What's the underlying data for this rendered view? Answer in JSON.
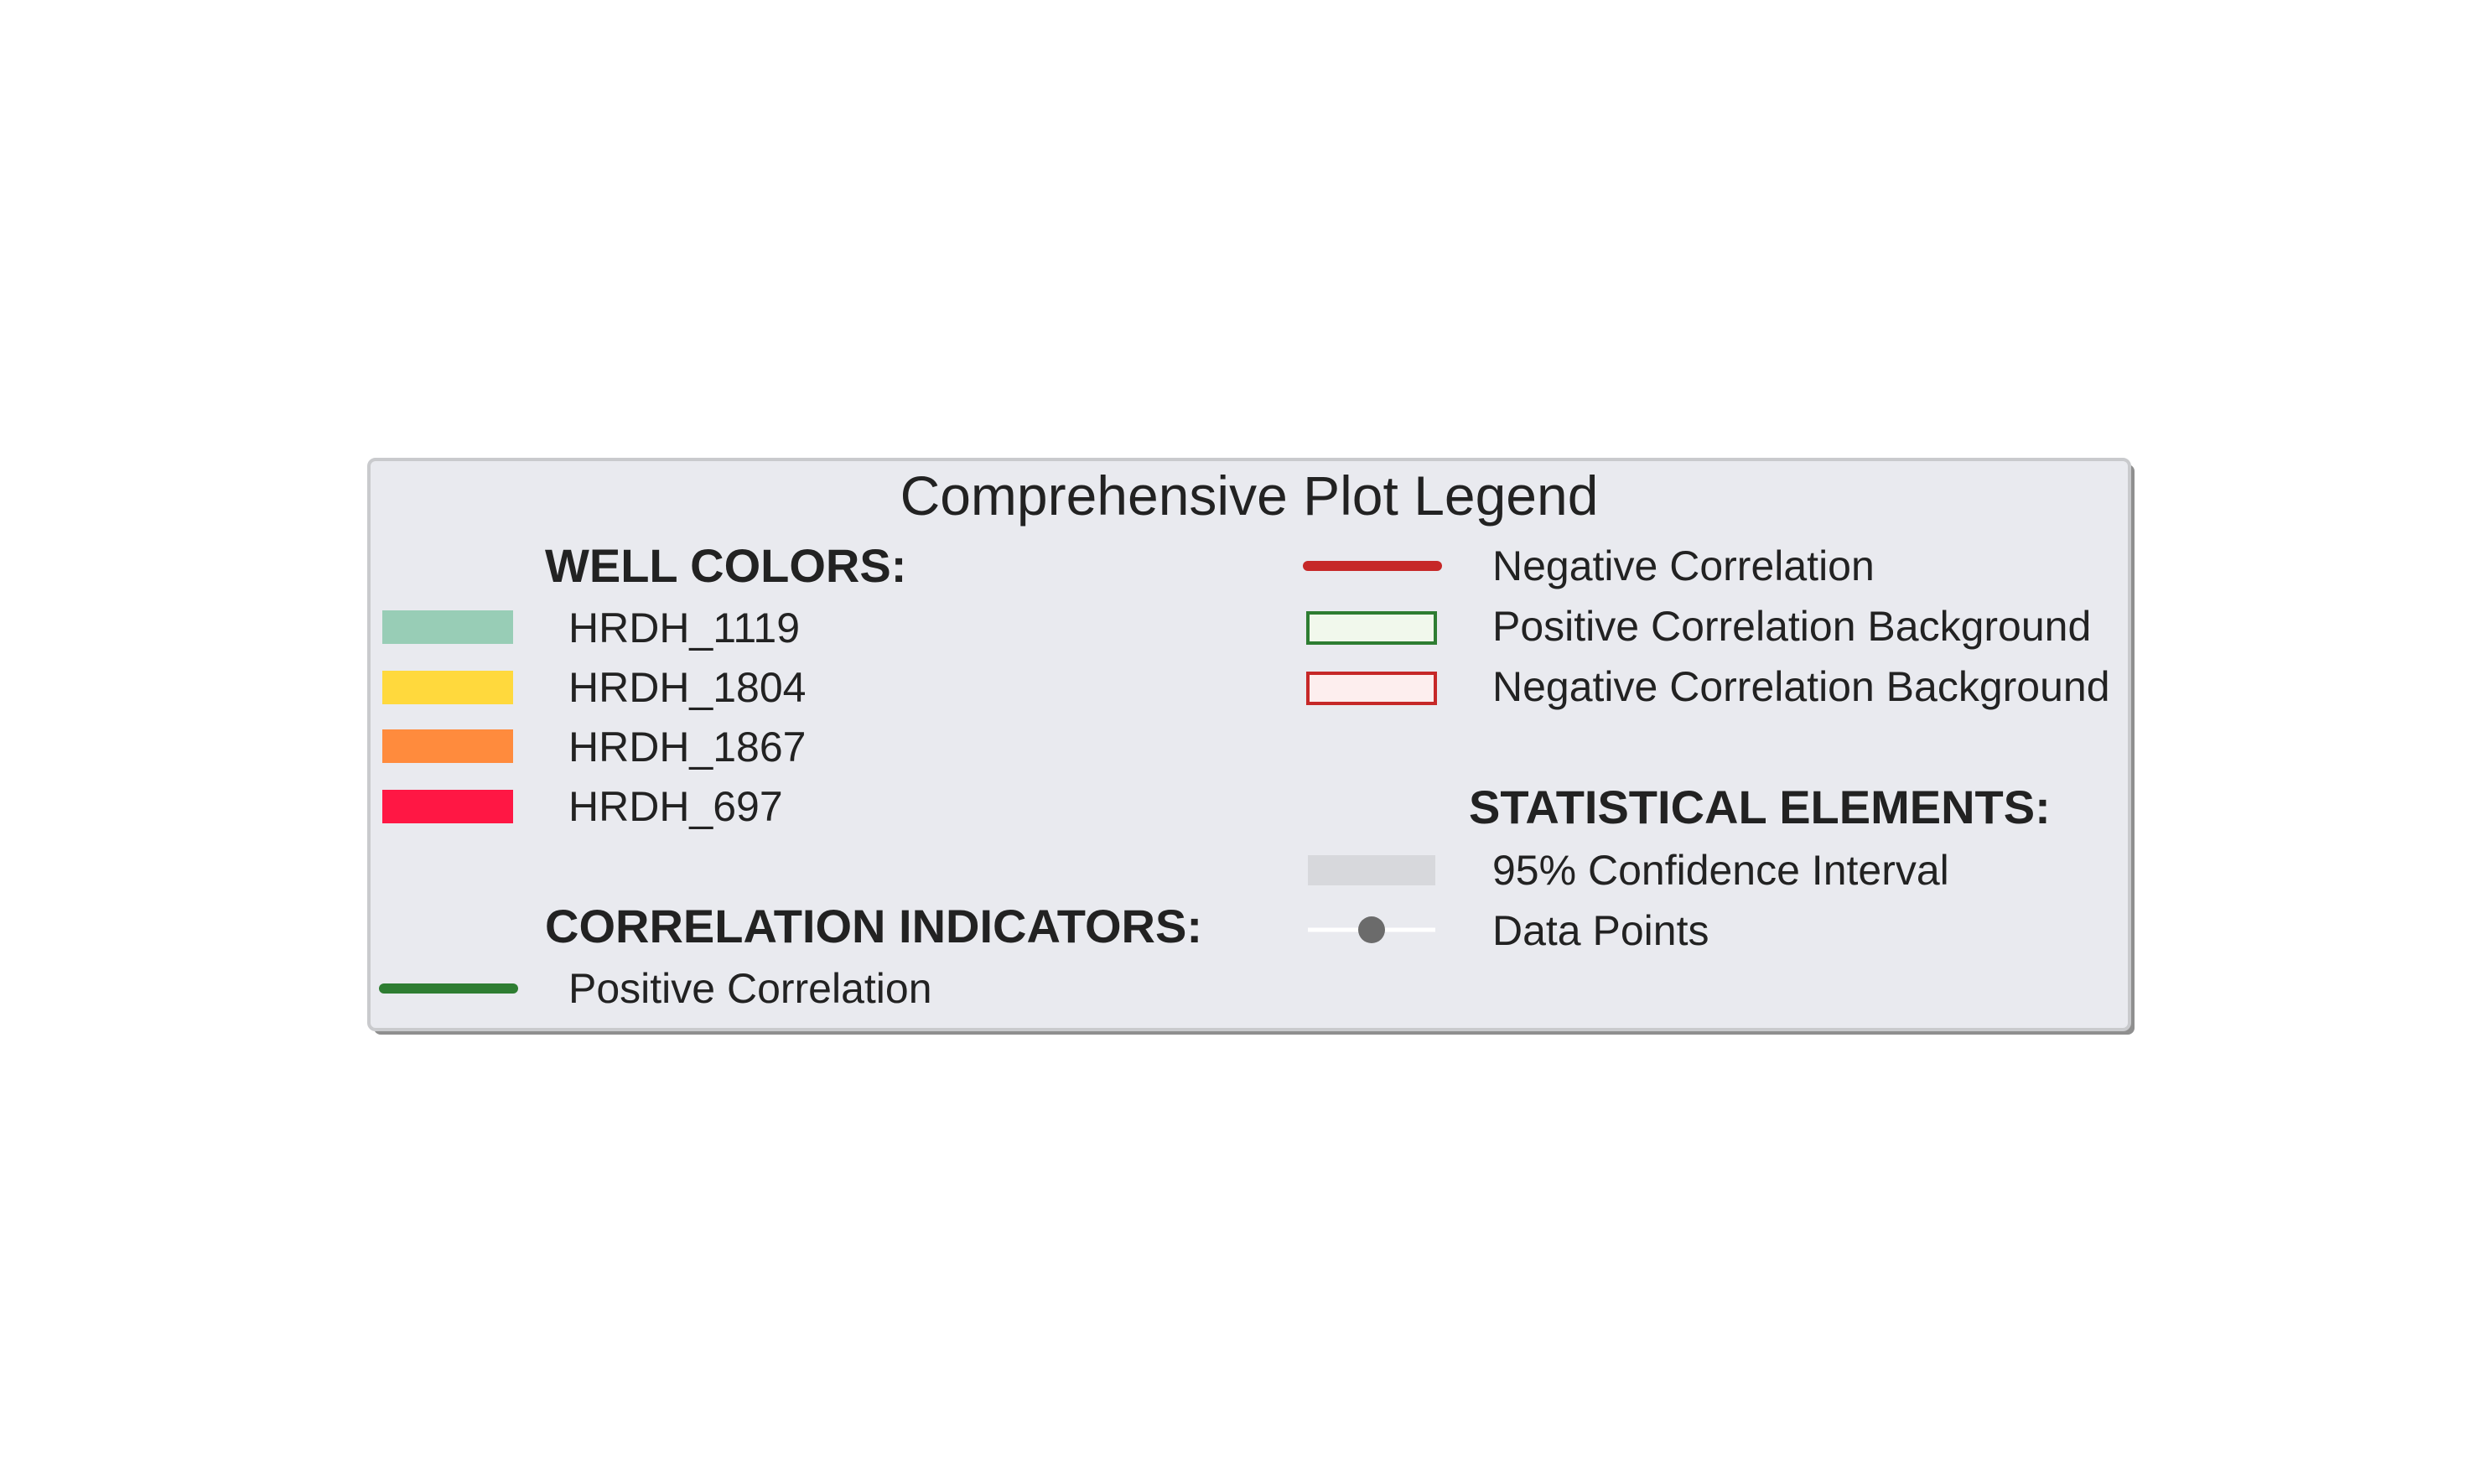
{
  "chart_data": {
    "type": "legend",
    "title": "Comprehensive Plot Legend",
    "sections": [
      {
        "heading": "WELL COLORS:",
        "entries": [
          {
            "label": "HRDH_1119",
            "marker": "patch",
            "color": "#98cdb6"
          },
          {
            "label": "HRDH_1804",
            "marker": "patch",
            "color": "#ffd93d"
          },
          {
            "label": "HRDH_1867",
            "marker": "patch",
            "color": "#ff8b3d"
          },
          {
            "label": "HRDH_697",
            "marker": "patch",
            "color": "#ff1744"
          }
        ]
      },
      {
        "heading": "CORRELATION INDICATORS:",
        "entries": [
          {
            "label": "Positive Correlation",
            "marker": "line",
            "color": "#2e7d32"
          },
          {
            "label": "Negative Correlation",
            "marker": "line",
            "color": "#c62828"
          },
          {
            "label": "Positive Correlation Background",
            "marker": "outlined-patch",
            "color": "#2e7d32",
            "fill": "#f1f8ec"
          },
          {
            "label": "Negative Correlation Background",
            "marker": "outlined-patch",
            "color": "#c62828",
            "fill": "#fdeeee"
          }
        ]
      },
      {
        "heading": "STATISTICAL ELEMENTS:",
        "entries": [
          {
            "label": "95% Confidence Interval",
            "marker": "patch",
            "color": "#d7d8dc"
          },
          {
            "label": "Data Points",
            "marker": "line-point",
            "color": "#ffffff",
            "point_color": "#6b6b6b"
          }
        ]
      }
    ],
    "colors": {
      "legend_background": "#e9eaef",
      "legend_border": "#c9cacd",
      "legend_shadow": "#8f8f8f",
      "text": "#222222"
    }
  }
}
